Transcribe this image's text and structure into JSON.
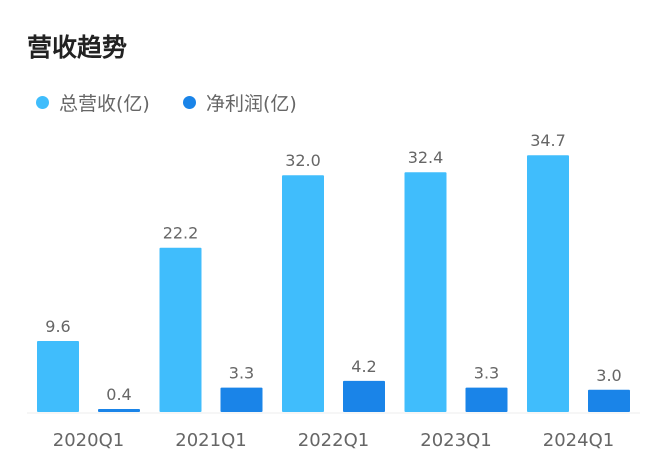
{
  "chart_data": {
    "type": "bar",
    "title": "营收趋势",
    "categories": [
      "2020Q1",
      "2021Q1",
      "2022Q1",
      "2023Q1",
      "2024Q1"
    ],
    "series": [
      {
        "name": "总营收(亿)",
        "color": "#40bdfc",
        "values": [
          9.6,
          22.2,
          32.0,
          32.4,
          34.7
        ]
      },
      {
        "name": "净利润(亿)",
        "color": "#1a84e8",
        "values": [
          0.4,
          3.3,
          4.2,
          3.3,
          3.0
        ]
      }
    ],
    "ylim": [
      0,
      35
    ],
    "grid": false,
    "legend": "top-left",
    "data_labels": true
  }
}
